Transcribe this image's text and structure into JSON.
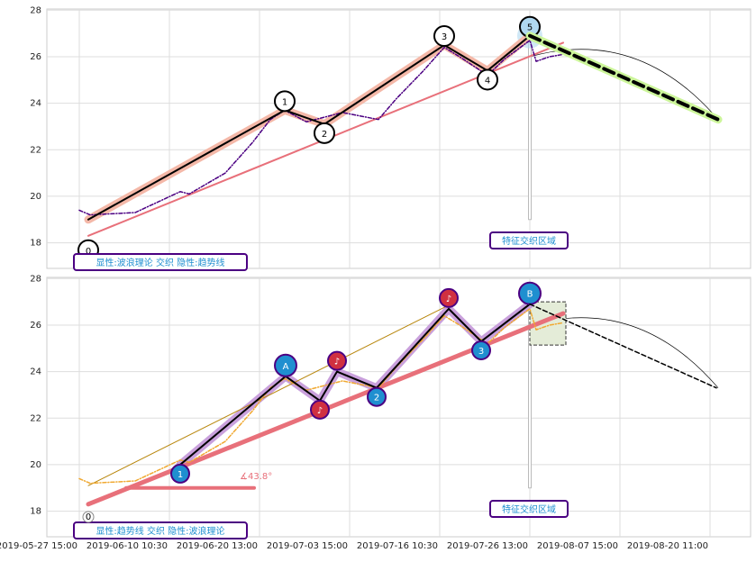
{
  "chart_data": [
    {
      "type": "line",
      "xlim": [
        -0.36,
        7.45
      ],
      "xticks": [
        0,
        1,
        2,
        3,
        4,
        5,
        6,
        7
      ],
      "ylim": [
        16.9,
        28.05
      ],
      "yticks": [
        18,
        20,
        22,
        24,
        26,
        28
      ],
      "grid": true,
      "series": [
        {
          "color": "#f4b8a8",
          "width": 9,
          "x": [
            0.1,
            2.28,
            2.72,
            4.05,
            4.53,
            5.0
          ],
          "values": [
            19.0,
            23.7,
            23.1,
            26.5,
            25.4,
            26.9
          ]
        },
        {
          "color": "#e8707a",
          "width": 2,
          "x": [
            0.1,
            5.37
          ],
          "values": [
            18.3,
            26.6
          ]
        },
        {
          "color": "#4b0082",
          "width": 1.5,
          "dash": "4,2,1,2",
          "x": [
            0.0,
            0.12,
            0.62,
            1.12,
            1.22,
            1.62,
            1.92,
            2.12,
            2.28,
            2.52,
            2.72,
            2.92,
            3.32,
            3.52,
            3.82,
            4.05,
            4.22,
            4.53,
            4.72,
            5.0,
            5.07,
            5.22,
            5.37
          ],
          "values": [
            19.4,
            19.2,
            19.3,
            20.2,
            20.1,
            21.0,
            22.3,
            23.3,
            23.7,
            23.2,
            23.4,
            23.6,
            23.3,
            24.2,
            25.4,
            26.4,
            26.0,
            25.2,
            25.9,
            26.7,
            25.8,
            26.0,
            26.1
          ]
        },
        {
          "color": "#000000",
          "width": 2,
          "x": [
            0.1,
            2.28,
            2.72,
            4.05,
            4.53,
            5.0
          ],
          "values": [
            19.0,
            23.7,
            23.1,
            26.5,
            25.4,
            26.9
          ],
          "labels": [
            "0",
            "1",
            "2",
            "3",
            "4",
            "5"
          ],
          "label_colors": [
            "#ffffff",
            "#ffffff",
            "#ffffff",
            "#ffffff",
            "#ffffff",
            "#b0d8f0"
          ]
        },
        {
          "color": "#ccf59a",
          "width": 9,
          "x": [
            5.0,
            7.09
          ],
          "values": [
            26.9,
            23.3
          ]
        },
        {
          "color": "#000000",
          "width": 4,
          "dash": "12,6",
          "x": [
            5.0,
            7.09
          ],
          "values": [
            26.9,
            23.3
          ]
        }
      ],
      "annotations": [
        "显性:波浪理论 交织 隐性:趋势线",
        "特征交织区域"
      ]
    },
    {
      "type": "line",
      "xlim": [
        -0.36,
        7.45
      ],
      "ylim": [
        16.9,
        28.05
      ],
      "yticks": [
        18,
        20,
        22,
        24,
        26,
        28
      ],
      "grid": true,
      "xticks": [
        {
          "value": 0,
          "label": "2019-05-27 15:00"
        },
        {
          "value": 1,
          "label": "2019-06-10 10:30"
        },
        {
          "value": 2,
          "label": "2019-06-20 13:00"
        },
        {
          "value": 3,
          "label": "2019-07-03 15:00"
        },
        {
          "value": 4,
          "label": "2019-07-16 10:30"
        },
        {
          "value": 5,
          "label": "2019-07-26 13:00"
        },
        {
          "value": 6,
          "label": "2019-08-07 15:00"
        },
        {
          "value": 7,
          "label": "2019-08-20 11:00"
        }
      ],
      "series": [
        {
          "color": "#c9a0dc",
          "width": 9,
          "x": [
            1.12,
            2.29,
            2.67,
            2.86,
            3.3,
            4.1,
            4.46,
            5.0
          ],
          "values": [
            20.0,
            23.8,
            22.75,
            24.0,
            23.3,
            26.7,
            25.3,
            26.9
          ]
        },
        {
          "color": "#e8707a",
          "width": 5,
          "x": [
            0.1,
            5.37
          ],
          "values": [
            18.3,
            26.5
          ]
        },
        {
          "color": "#e8707a",
          "width": 4,
          "x": [
            0.52,
            1.94
          ],
          "values": [
            19.0,
            19.0
          ]
        },
        {
          "color": "#b8860b",
          "width": 1,
          "x": [
            0.1,
            4.07
          ],
          "values": [
            19.1,
            26.8
          ]
        },
        {
          "color": "#f0a830",
          "width": 1.5,
          "dash": "4,2,1,2",
          "x": [
            0.0,
            0.12,
            0.62,
            1.12,
            1.22,
            1.62,
            1.92,
            2.12,
            2.28,
            2.52,
            2.72,
            2.92,
            3.32,
            3.52,
            3.82,
            4.05,
            4.22,
            4.53,
            4.72,
            5.0,
            5.07,
            5.22,
            5.37
          ],
          "values": [
            19.4,
            19.2,
            19.3,
            20.2,
            20.1,
            21.0,
            22.3,
            23.3,
            23.7,
            23.2,
            23.4,
            23.6,
            23.3,
            24.2,
            25.4,
            26.4,
            26.0,
            25.2,
            25.9,
            26.7,
            25.8,
            26.0,
            26.1
          ]
        },
        {
          "color": "#000000",
          "width": 2,
          "x": [
            1.12,
            2.29,
            2.67,
            2.86,
            3.3,
            4.1,
            4.46,
            5.0
          ],
          "values": [
            20.0,
            23.8,
            22.75,
            24.0,
            23.3,
            26.7,
            25.3,
            26.9
          ],
          "labels": [
            "1",
            "A",
            "♪",
            "♪",
            "2",
            "♪",
            "3",
            "B"
          ],
          "label_colors": [
            "#1f8fd0",
            "#1f8fd0",
            "#d03040",
            "#d03040",
            "#1f8fd0",
            "#d03040",
            "#1f8fd0",
            "#1f8fd0"
          ]
        },
        {
          "color": "#000000",
          "width": 1.5,
          "dash": "5,3",
          "x": [
            5.0,
            7.07
          ],
          "values": [
            26.9,
            23.3
          ]
        }
      ],
      "annotations": [
        "显性:趋势线 交织 隐性:波浪理论",
        "特征交织区域",
        "∡43.8°",
        "0"
      ]
    }
  ]
}
